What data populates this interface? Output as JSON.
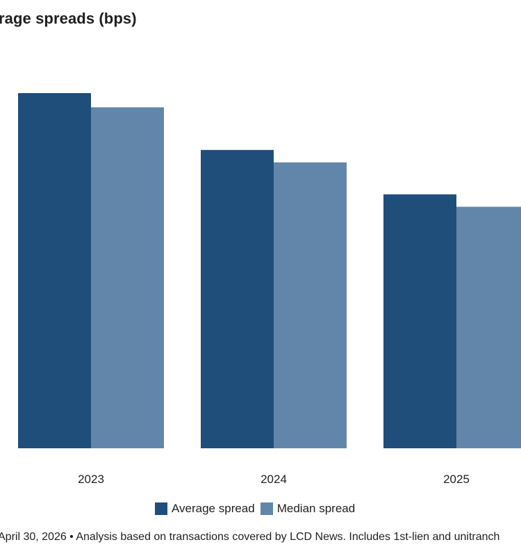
{
  "chart_data": {
    "type": "bar",
    "title": "rage spreads (bps)",
    "categories": [
      "2023",
      "2024",
      "2025"
    ],
    "series": [
      {
        "name": "Average spread",
        "color": "#1f4e7a",
        "values": [
          100,
          84,
          71.5
        ]
      },
      {
        "name": "Median spread",
        "color": "#6186aa",
        "values": [
          96,
          80.5,
          68
        ]
      }
    ],
    "ylim": [
      0,
      103
    ],
    "grid": false,
    "legend_position": "bottom-center",
    "footnote": "April 30, 2026 • Analysis based on transactions covered by LCD News. Includes 1st-lien and unitranch"
  }
}
